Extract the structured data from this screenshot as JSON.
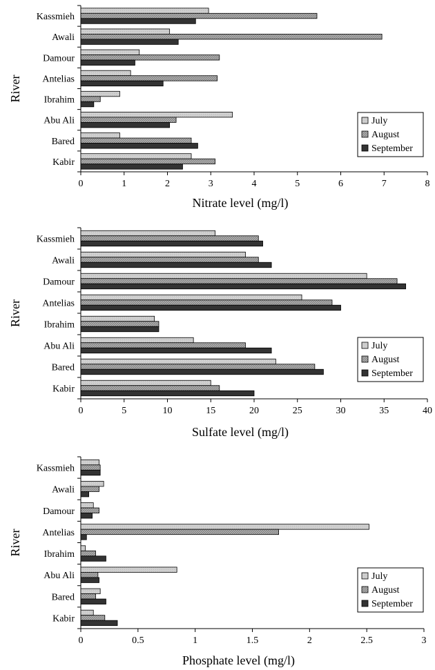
{
  "chart_data": [
    {
      "type": "bar",
      "orientation": "horizontal",
      "categories": [
        "Kassmieh",
        "Awali",
        "Damour",
        "Antelias",
        "Ibrahim",
        "Abu Ali",
        "Bared",
        "Kabir"
      ],
      "series": [
        {
          "name": "July",
          "values": [
            2.95,
            2.05,
            1.35,
            1.15,
            0.9,
            3.5,
            0.9,
            2.55
          ],
          "color": "#c8c8c8",
          "pattern": "light"
        },
        {
          "name": "August",
          "values": [
            5.45,
            6.95,
            3.2,
            3.15,
            0.45,
            2.2,
            2.55,
            3.1
          ],
          "color": "#a8a8a8",
          "pattern": "hatched"
        },
        {
          "name": "September",
          "values": [
            2.65,
            2.25,
            1.25,
            1.9,
            0.3,
            2.05,
            2.7,
            2.35
          ],
          "color": "#333333",
          "pattern": "dark"
        }
      ],
      "xlabel": "Nitrate level (mg/l)",
      "ylabel": "River",
      "xlim": [
        0,
        8
      ],
      "xticks": [
        "0",
        "1",
        "2",
        "3",
        "4",
        "5",
        "6",
        "7",
        "8"
      ],
      "legend_position": "lower-right",
      "grid": false
    },
    {
      "type": "bar",
      "orientation": "horizontal",
      "categories": [
        "Kassmieh",
        "Awali",
        "Damour",
        "Antelias",
        "Ibrahim",
        "Abu Ali",
        "Bared",
        "Kabir"
      ],
      "series": [
        {
          "name": "July",
          "values": [
            15.5,
            19,
            33,
            25.5,
            8.5,
            13,
            22.5,
            15
          ],
          "color": "#c8c8c8",
          "pattern": "light"
        },
        {
          "name": "August",
          "values": [
            20.5,
            20.5,
            36.5,
            29,
            9,
            19,
            27,
            16
          ],
          "color": "#a8a8a8",
          "pattern": "hatched"
        },
        {
          "name": "September",
          "values": [
            21,
            22,
            37.5,
            30,
            9,
            22,
            28,
            20
          ],
          "color": "#333333",
          "pattern": "dark"
        }
      ],
      "xlabel": "Sulfate level (mg/l)",
      "ylabel": "River",
      "xlim": [
        0,
        40
      ],
      "xticks": [
        "0",
        "5",
        "10",
        "15",
        "20",
        "25",
        "30",
        "35",
        "40"
      ],
      "legend_position": "lower-right",
      "grid": false
    },
    {
      "type": "bar",
      "orientation": "horizontal",
      "categories": [
        "Kassmieh",
        "Awali",
        "Damour",
        "Antelias",
        "Ibrahim",
        "Abu Ali",
        "Bared",
        "Kabir"
      ],
      "series": [
        {
          "name": "July",
          "values": [
            0.16,
            0.2,
            0.11,
            2.52,
            0.04,
            0.84,
            0.17,
            0.11
          ],
          "color": "#c8c8c8",
          "pattern": "light"
        },
        {
          "name": "August",
          "values": [
            0.17,
            0.16,
            0.16,
            1.73,
            0.13,
            0.15,
            0.13,
            0.21
          ],
          "color": "#a8a8a8",
          "pattern": "hatched"
        },
        {
          "name": "September",
          "values": [
            0.17,
            0.07,
            0.1,
            0.05,
            0.22,
            0.16,
            0.22,
            0.32
          ],
          "color": "#333333",
          "pattern": "dark"
        }
      ],
      "xlabel": "Phosphate level (mg/l)",
      "ylabel": "River",
      "xlim": [
        0,
        3
      ],
      "xticks": [
        "0",
        "0.5",
        "1",
        "1.5",
        "2",
        "2.5",
        "3"
      ],
      "legend_position": "lower-right",
      "grid": false
    }
  ]
}
